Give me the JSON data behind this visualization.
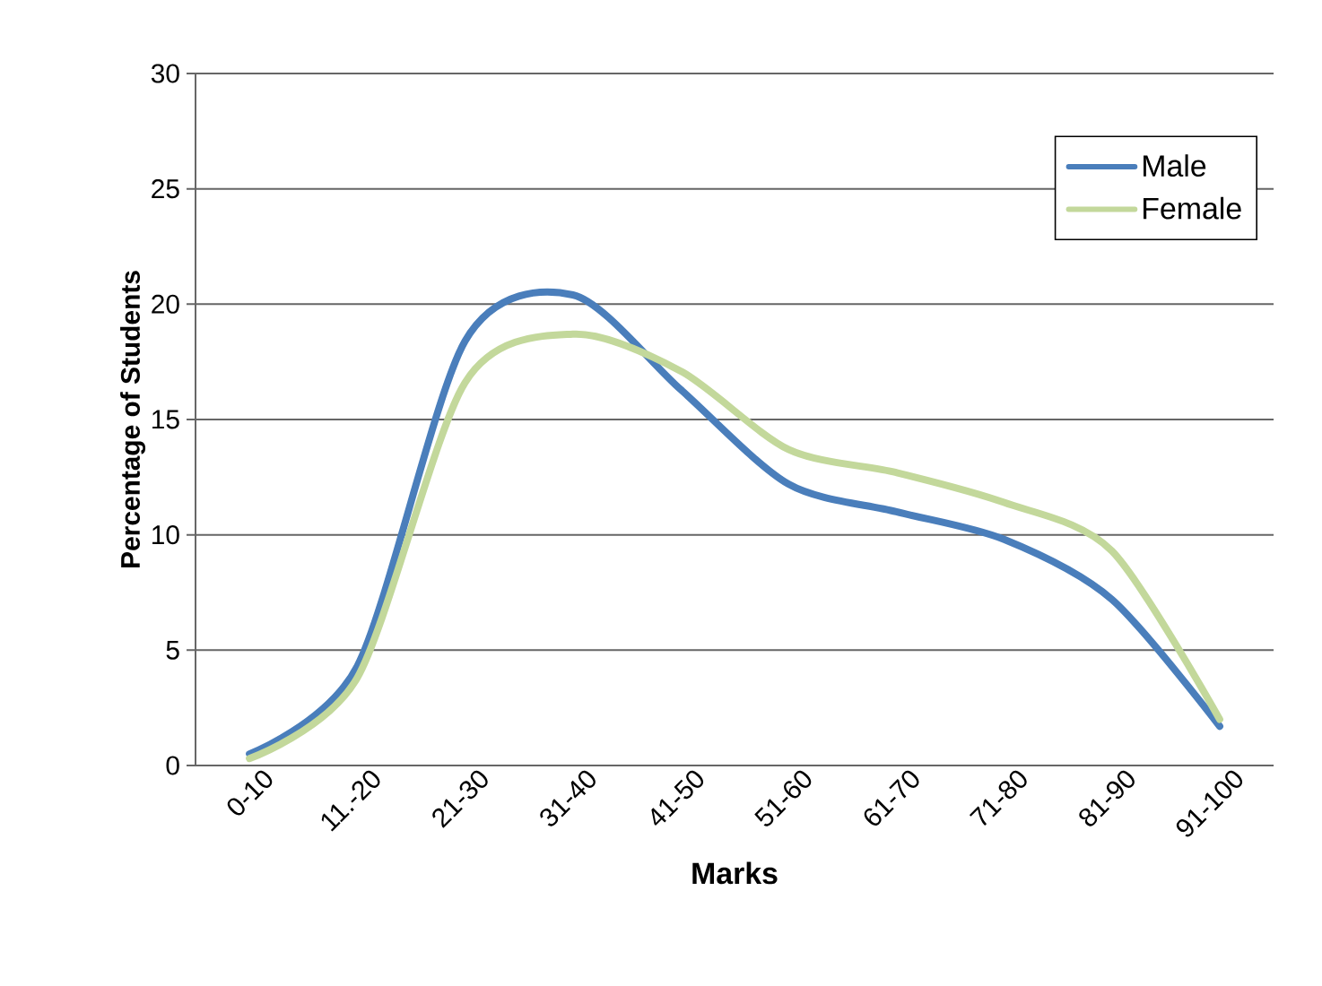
{
  "chart_data": {
    "type": "line",
    "xlabel": "Marks",
    "ylabel": "Percentage of Students",
    "categories": [
      "0-10",
      "11.-20",
      "21-30",
      "31-40",
      "41-50",
      "51-60",
      "61-70",
      "71-80",
      "81-90",
      "91-100"
    ],
    "series": [
      {
        "name": "Male",
        "color": "#4a7ebb",
        "values": [
          0.5,
          4.3,
          18.4,
          20.4,
          16.3,
          12.2,
          11.0,
          9.8,
          7.2,
          1.7
        ]
      },
      {
        "name": "Female",
        "color": "#c3d89b",
        "values": [
          0.3,
          3.8,
          16.6,
          18.7,
          17.1,
          13.7,
          12.7,
          11.4,
          9.3,
          2.0
        ]
      }
    ],
    "ylim": [
      0,
      30
    ],
    "yticks": [
      0,
      5,
      10,
      15,
      20,
      25,
      30
    ],
    "grid": "y",
    "legend": "top right",
    "marker": "none",
    "line_style": "solid"
  }
}
